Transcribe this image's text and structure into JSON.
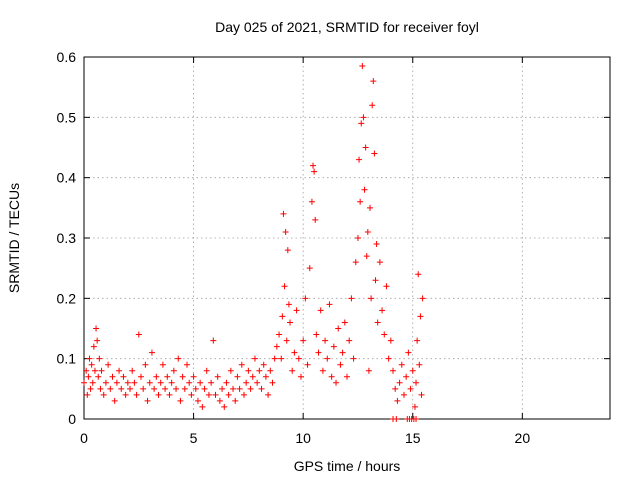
{
  "chart_data": {
    "type": "scatter",
    "title": "Day 025 of 2021, SRMTID for receiver foyl",
    "xlabel": "GPS time / hours",
    "ylabel": "SRMTID / TECUs",
    "xlim": [
      0,
      24
    ],
    "ylim": [
      0,
      0.6
    ],
    "xticks": [
      0,
      5,
      10,
      15,
      20
    ],
    "yticks": [
      0,
      0.1,
      0.2,
      0.3,
      0.4,
      0.5,
      0.6
    ],
    "xtick_labels": [
      "0",
      "5",
      "10",
      "15",
      "20"
    ],
    "ytick_labels": [
      "0",
      "0.1",
      "0.2",
      "0.3",
      "0.4",
      "0.5",
      "0.6"
    ],
    "grid": true,
    "marker": "+",
    "series": [
      {
        "name": "SRMTID",
        "color": "#ff0000",
        "points": [
          [
            0.0,
            0.06
          ],
          [
            0.1,
            0.08
          ],
          [
            0.15,
            0.04
          ],
          [
            0.2,
            0.07
          ],
          [
            0.25,
            0.1
          ],
          [
            0.3,
            0.05
          ],
          [
            0.35,
            0.09
          ],
          [
            0.4,
            0.06
          ],
          [
            0.45,
            0.12
          ],
          [
            0.5,
            0.08
          ],
          [
            0.55,
            0.15
          ],
          [
            0.6,
            0.13
          ],
          [
            0.65,
            0.07
          ],
          [
            0.7,
            0.1
          ],
          [
            0.75,
            0.05
          ],
          [
            0.8,
            0.08
          ],
          [
            0.9,
            0.04
          ],
          [
            1.0,
            0.06
          ],
          [
            1.1,
            0.09
          ],
          [
            1.2,
            0.05
          ],
          [
            1.3,
            0.07
          ],
          [
            1.4,
            0.03
          ],
          [
            1.5,
            0.06
          ],
          [
            1.6,
            0.08
          ],
          [
            1.7,
            0.05
          ],
          [
            1.8,
            0.07
          ],
          [
            1.9,
            0.04
          ],
          [
            2.0,
            0.06
          ],
          [
            2.1,
            0.05
          ],
          [
            2.2,
            0.08
          ],
          [
            2.3,
            0.06
          ],
          [
            2.4,
            0.04
          ],
          [
            2.5,
            0.14
          ],
          [
            2.6,
            0.07
          ],
          [
            2.7,
            0.05
          ],
          [
            2.8,
            0.09
          ],
          [
            2.9,
            0.03
          ],
          [
            3.0,
            0.06
          ],
          [
            3.1,
            0.11
          ],
          [
            3.2,
            0.05
          ],
          [
            3.3,
            0.07
          ],
          [
            3.4,
            0.04
          ],
          [
            3.5,
            0.06
          ],
          [
            3.6,
            0.09
          ],
          [
            3.7,
            0.05
          ],
          [
            3.8,
            0.07
          ],
          [
            3.9,
            0.04
          ],
          [
            4.0,
            0.06
          ],
          [
            4.1,
            0.08
          ],
          [
            4.2,
            0.05
          ],
          [
            4.3,
            0.1
          ],
          [
            4.4,
            0.03
          ],
          [
            4.5,
            0.07
          ],
          [
            4.6,
            0.05
          ],
          [
            4.7,
            0.09
          ],
          [
            4.8,
            0.06
          ],
          [
            4.9,
            0.04
          ],
          [
            5.0,
            0.07
          ],
          [
            5.1,
            0.05
          ],
          [
            5.2,
            0.03
          ],
          [
            5.3,
            0.06
          ],
          [
            5.4,
            0.02
          ],
          [
            5.5,
            0.05
          ],
          [
            5.6,
            0.08
          ],
          [
            5.7,
            0.04
          ],
          [
            5.8,
            0.06
          ],
          [
            5.9,
            0.13
          ],
          [
            6.0,
            0.04
          ],
          [
            6.1,
            0.07
          ],
          [
            6.2,
            0.03
          ],
          [
            6.3,
            0.05
          ],
          [
            6.4,
            0.02
          ],
          [
            6.5,
            0.06
          ],
          [
            6.6,
            0.04
          ],
          [
            6.7,
            0.08
          ],
          [
            6.8,
            0.05
          ],
          [
            6.9,
            0.03
          ],
          [
            7.0,
            0.07
          ],
          [
            7.1,
            0.05
          ],
          [
            7.2,
            0.09
          ],
          [
            7.3,
            0.04
          ],
          [
            7.4,
            0.06
          ],
          [
            7.5,
            0.08
          ],
          [
            7.6,
            0.05
          ],
          [
            7.7,
            0.07
          ],
          [
            7.8,
            0.1
          ],
          [
            7.9,
            0.06
          ],
          [
            8.0,
            0.08
          ],
          [
            8.1,
            0.05
          ],
          [
            8.2,
            0.09
          ],
          [
            8.3,
            0.07
          ],
          [
            8.4,
            0.04
          ],
          [
            8.5,
            0.08
          ],
          [
            8.6,
            0.06
          ],
          [
            8.7,
            0.1
          ],
          [
            8.8,
            0.12
          ],
          [
            8.9,
            0.14
          ],
          [
            9.0,
            0.1
          ],
          [
            9.05,
            0.17
          ],
          [
            9.1,
            0.34
          ],
          [
            9.15,
            0.22
          ],
          [
            9.2,
            0.31
          ],
          [
            9.25,
            0.13
          ],
          [
            9.3,
            0.28
          ],
          [
            9.35,
            0.19
          ],
          [
            9.4,
            0.16
          ],
          [
            9.5,
            0.08
          ],
          [
            9.6,
            0.11
          ],
          [
            9.7,
            0.18
          ],
          [
            9.8,
            0.1
          ],
          [
            9.9,
            0.07
          ],
          [
            10.0,
            0.13
          ],
          [
            10.1,
            0.2
          ],
          [
            10.2,
            0.09
          ],
          [
            10.3,
            0.25
          ],
          [
            10.4,
            0.36
          ],
          [
            10.45,
            0.42
          ],
          [
            10.5,
            0.41
          ],
          [
            10.55,
            0.33
          ],
          [
            10.6,
            0.14
          ],
          [
            10.7,
            0.11
          ],
          [
            10.8,
            0.18
          ],
          [
            10.9,
            0.08
          ],
          [
            11.0,
            0.13
          ],
          [
            11.1,
            0.1
          ],
          [
            11.2,
            0.19
          ],
          [
            11.3,
            0.07
          ],
          [
            11.4,
            0.12
          ],
          [
            11.5,
            0.06
          ],
          [
            11.6,
            0.15
          ],
          [
            11.7,
            0.09
          ],
          [
            11.8,
            0.11
          ],
          [
            11.9,
            0.16
          ],
          [
            12.0,
            0.07
          ],
          [
            12.1,
            0.13
          ],
          [
            12.2,
            0.2
          ],
          [
            12.3,
            0.1
          ],
          [
            12.4,
            0.26
          ],
          [
            12.5,
            0.3
          ],
          [
            12.55,
            0.43
          ],
          [
            12.6,
            0.36
          ],
          [
            12.65,
            0.49
          ],
          [
            12.7,
            0.585
          ],
          [
            12.75,
            0.5
          ],
          [
            12.8,
            0.38
          ],
          [
            12.85,
            0.45
          ],
          [
            12.9,
            0.27
          ],
          [
            12.95,
            0.31
          ],
          [
            13.0,
            0.08
          ],
          [
            13.05,
            0.35
          ],
          [
            13.1,
            0.2
          ],
          [
            13.15,
            0.52
          ],
          [
            13.2,
            0.56
          ],
          [
            13.25,
            0.44
          ],
          [
            13.3,
            0.23
          ],
          [
            13.35,
            0.29
          ],
          [
            13.4,
            0.16
          ],
          [
            13.5,
            0.26
          ],
          [
            13.6,
            0.18
          ],
          [
            13.7,
            0.14
          ],
          [
            13.8,
            0.22
          ],
          [
            13.9,
            0.1
          ],
          [
            14.0,
            0.13
          ],
          [
            14.1,
            0.08
          ],
          [
            14.2,
            0.05
          ],
          [
            14.3,
            0.03
          ],
          [
            14.4,
            0.06
          ],
          [
            14.5,
            0.09
          ],
          [
            14.6,
            0.04
          ],
          [
            14.7,
            0.07
          ],
          [
            14.8,
            0.11
          ],
          [
            14.9,
            0.05
          ],
          [
            15.0,
            0.08
          ],
          [
            15.1,
            0.02
          ],
          [
            15.15,
            0.06
          ],
          [
            15.2,
            0.13
          ],
          [
            15.25,
            0.24
          ],
          [
            15.3,
            0.09
          ],
          [
            15.35,
            0.17
          ],
          [
            15.4,
            0.04
          ],
          [
            15.45,
            0.2
          ],
          [
            14.1,
            0.0
          ],
          [
            14.25,
            0.0
          ],
          [
            14.75,
            0.0
          ],
          [
            14.85,
            0.0
          ],
          [
            14.95,
            0.0
          ],
          [
            15.05,
            0.0
          ],
          [
            15.15,
            0.0
          ]
        ]
      }
    ]
  }
}
